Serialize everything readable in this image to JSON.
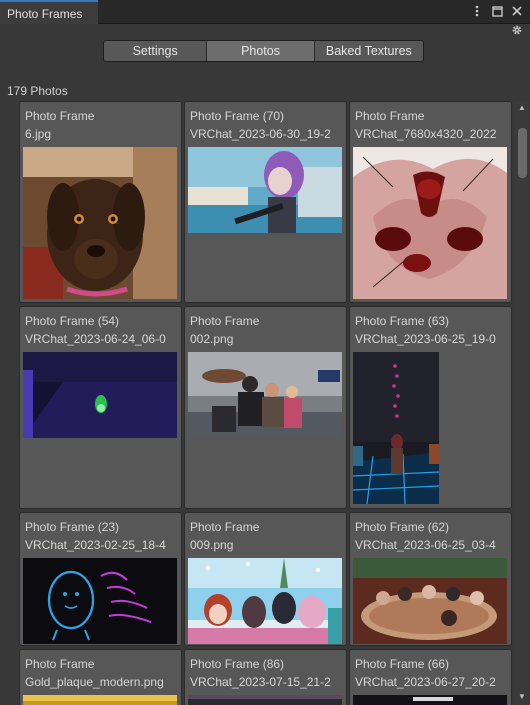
{
  "window": {
    "tab_title": "Photo Frames",
    "icons": [
      "more-vert-icon",
      "maximize-icon",
      "close-icon",
      "gear-icon"
    ]
  },
  "toolbar": {
    "segments": [
      "Settings",
      "Photos",
      "Baked Textures"
    ],
    "active": "Photos"
  },
  "photos_count": "179 Photos",
  "grid": {
    "cards": [
      {
        "title": "Photo Frame",
        "file": "6.jpg",
        "thumb": "brown-dog-photo"
      },
      {
        "title": "Photo Frame (70)",
        "file": "VRChat_2023-06-30_19-2",
        "thumb": "purple-hair-avatar-screenshot"
      },
      {
        "title": "Photo Frame",
        "file": "VRChat_7680x4320_2022",
        "thumb": "pink-sketch-artwork"
      },
      {
        "title": "Photo Frame (54)",
        "file": "VRChat_2023-06-24_06-0",
        "thumb": "dark-purple-room-screenshot"
      },
      {
        "title": "Photo Frame",
        "file": "002.png",
        "thumb": "avatars-with-blimp-screenshot"
      },
      {
        "title": "Photo Frame (63)",
        "file": "VRChat_2023-06-25_19-0",
        "thumb": "neon-club-screenshot"
      },
      {
        "title": "Photo Frame (23)",
        "file": "VRChat_2023-02-25_18-4",
        "thumb": "neon-egg-drawing"
      },
      {
        "title": "Photo Frame",
        "file": "009.png",
        "thumb": "anime-group-screenshot"
      },
      {
        "title": "Photo Frame (62)",
        "file": "VRChat_2023-06-25_03-4",
        "thumb": "hot-tub-group-screenshot"
      },
      {
        "title": "Photo Frame",
        "file": "Gold_plaque_modern.png",
        "thumb": "gold-plaque"
      },
      {
        "title": "Photo Frame (86)",
        "file": "VRChat_2023-07-15_21-2",
        "thumb": "partial-screenshot"
      },
      {
        "title": "Photo Frame (66)",
        "file": "VRChat_2023-06-27_20-2",
        "thumb": "partial-screenshot-dark"
      }
    ]
  },
  "scrollbar": {
    "position": 0
  }
}
